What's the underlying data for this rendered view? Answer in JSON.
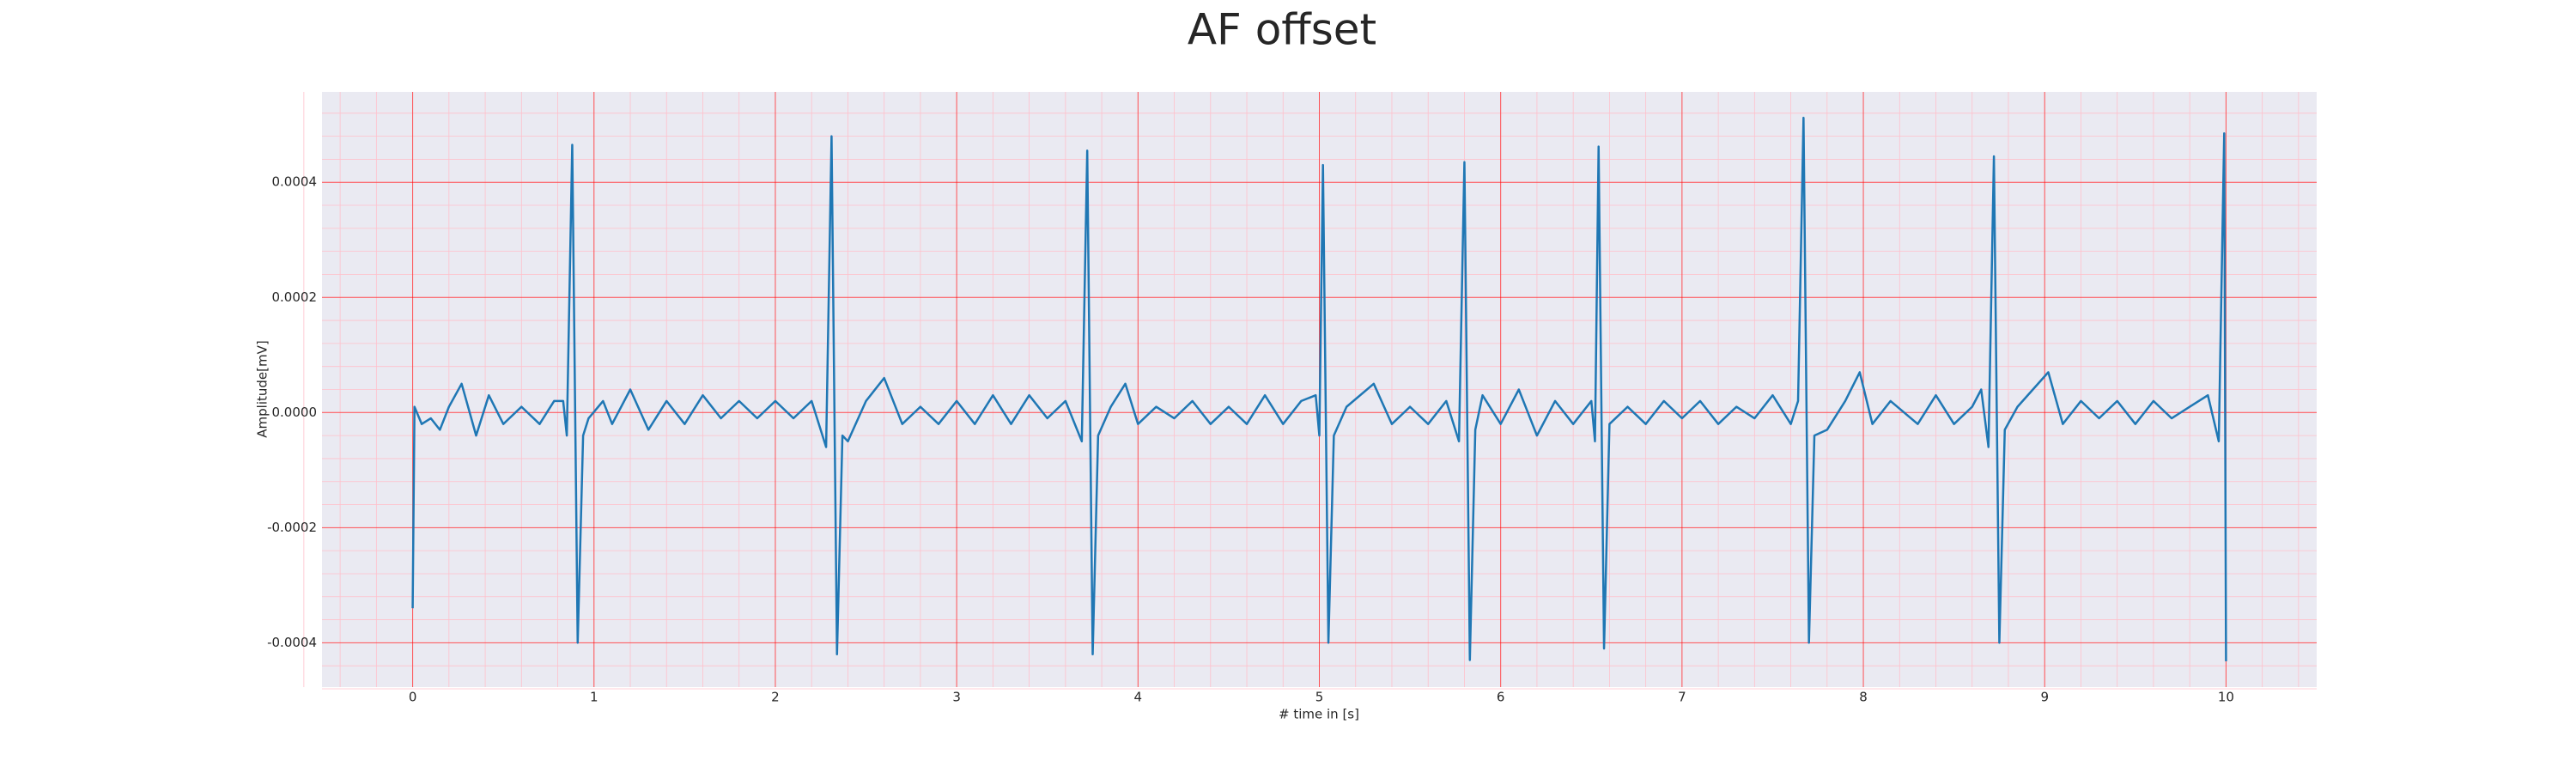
{
  "chart_data": {
    "type": "line",
    "title": "AF offset",
    "xlabel": "# time in [s]",
    "ylabel": "Amplitude[mV]",
    "color": "#1f77b4",
    "grid": true,
    "minor_grid": true,
    "xlim": [
      -0.5,
      10.5
    ],
    "ylim": [
      -0.000477,
      0.000557
    ],
    "xticks": [
      0,
      1,
      2,
      3,
      4,
      5,
      6,
      7,
      8,
      9,
      10
    ],
    "yticks": [
      {
        "value": -0.0004,
        "label": "-0.0004"
      },
      {
        "value": -0.0002,
        "label": "-0.0002"
      },
      {
        "value": 0,
        "label": "0.0000"
      },
      {
        "value": 0.0002,
        "label": "0.0002"
      },
      {
        "value": 0.0004,
        "label": "0.0004"
      }
    ],
    "x": [
      0,
      0.01,
      0.05,
      0.1,
      0.15,
      0.2,
      0.27,
      0.35,
      0.42,
      0.5,
      0.6,
      0.7,
      0.78,
      0.83,
      0.85,
      0.88,
      0.91,
      0.94,
      0.97,
      1.05,
      1.1,
      1.2,
      1.3,
      1.4,
      1.5,
      1.6,
      1.7,
      1.8,
      1.9,
      2.0,
      2.1,
      2.2,
      2.28,
      2.31,
      2.34,
      2.37,
      2.4,
      2.5,
      2.6,
      2.7,
      2.8,
      2.9,
      3.0,
      3.1,
      3.2,
      3.3,
      3.4,
      3.5,
      3.6,
      3.69,
      3.72,
      3.75,
      3.78,
      3.85,
      3.93,
      4.0,
      4.1,
      4.2,
      4.3,
      4.4,
      4.5,
      4.6,
      4.7,
      4.8,
      4.9,
      4.98,
      5.0,
      5.02,
      5.05,
      5.08,
      5.15,
      5.3,
      5.4,
      5.5,
      5.6,
      5.7,
      5.77,
      5.8,
      5.83,
      5.86,
      5.9,
      6.0,
      6.1,
      6.2,
      6.3,
      6.4,
      6.5,
      6.52,
      6.54,
      6.57,
      6.6,
      6.7,
      6.8,
      6.9,
      7.0,
      7.1,
      7.2,
      7.3,
      7.4,
      7.5,
      7.6,
      7.64,
      7.67,
      7.7,
      7.73,
      7.8,
      7.9,
      7.98,
      8.05,
      8.15,
      8.3,
      8.4,
      8.5,
      8.6,
      8.65,
      8.69,
      8.72,
      8.75,
      8.78,
      8.85,
      9.02,
      9.1,
      9.2,
      9.3,
      9.4,
      9.5,
      9.6,
      9.7,
      9.8,
      9.9,
      9.96,
      9.99,
      10.0
    ],
    "values": [
      -0.00034,
      1e-05,
      -2e-05,
      -1e-05,
      -3e-05,
      1e-05,
      5e-05,
      -4e-05,
      3e-05,
      -2e-05,
      1e-05,
      -2e-05,
      2e-05,
      2e-05,
      -4e-05,
      0.000465,
      -0.0004,
      -4e-05,
      -1e-05,
      2e-05,
      -2e-05,
      4e-05,
      -3e-05,
      2e-05,
      -2e-05,
      3e-05,
      -1e-05,
      2e-05,
      -1e-05,
      2e-05,
      -1e-05,
      2e-05,
      -6e-05,
      0.00048,
      -0.00042,
      -4e-05,
      -5e-05,
      2e-05,
      6e-05,
      -2e-05,
      1e-05,
      -2e-05,
      2e-05,
      -2e-05,
      3e-05,
      -2e-05,
      3e-05,
      -1e-05,
      2e-05,
      -5e-05,
      0.000455,
      -0.00042,
      -4e-05,
      1e-05,
      5e-05,
      -2e-05,
      1e-05,
      -1e-05,
      2e-05,
      -2e-05,
      1e-05,
      -2e-05,
      3e-05,
      -2e-05,
      2e-05,
      3e-05,
      -4e-05,
      0.00043,
      -0.0004,
      -4e-05,
      1e-05,
      5e-05,
      -2e-05,
      1e-05,
      -2e-05,
      2e-05,
      -5e-05,
      0.000435,
      -0.00043,
      -3e-05,
      3e-05,
      -2e-05,
      4e-05,
      -4e-05,
      2e-05,
      -2e-05,
      2e-05,
      -5e-05,
      0.000462,
      -0.00041,
      -2e-05,
      1e-05,
      -2e-05,
      2e-05,
      -1e-05,
      2e-05,
      -2e-05,
      1e-05,
      -1e-05,
      3e-05,
      -2e-05,
      2e-05,
      0.000512,
      -0.0004,
      -4e-05,
      -3e-05,
      2e-05,
      7e-05,
      -2e-05,
      2e-05,
      -2e-05,
      3e-05,
      -2e-05,
      1e-05,
      4e-05,
      -6e-05,
      0.000445,
      -0.0004,
      -3e-05,
      1e-05,
      7e-05,
      -2e-05,
      2e-05,
      -1e-05,
      2e-05,
      -2e-05,
      2e-05,
      -1e-05,
      1e-05,
      3e-05,
      -5e-05,
      0.000485,
      -0.000432
    ]
  }
}
